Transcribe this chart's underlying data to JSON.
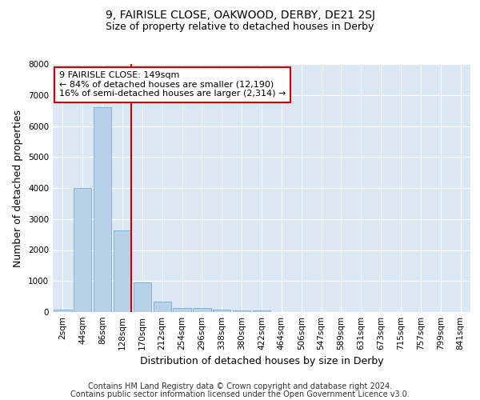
{
  "title": "9, FAIRISLE CLOSE, OAKWOOD, DERBY, DE21 2SJ",
  "subtitle": "Size of property relative to detached houses in Derby",
  "xlabel": "Distribution of detached houses by size in Derby",
  "ylabel": "Number of detached properties",
  "bar_labels": [
    "2sqm",
    "44sqm",
    "86sqm",
    "128sqm",
    "170sqm",
    "212sqm",
    "254sqm",
    "296sqm",
    "338sqm",
    "380sqm",
    "422sqm",
    "464sqm",
    "506sqm",
    "547sqm",
    "589sqm",
    "631sqm",
    "673sqm",
    "715sqm",
    "757sqm",
    "799sqm",
    "841sqm"
  ],
  "bar_values": [
    75,
    4000,
    6600,
    2625,
    950,
    325,
    130,
    120,
    75,
    60,
    55,
    0,
    0,
    0,
    0,
    0,
    0,
    0,
    0,
    0,
    0
  ],
  "bar_color": "#b8d0e8",
  "bar_edge_color": "#7aadd4",
  "vline_x_idx": 3,
  "vline_color": "#cc0000",
  "annotation_box_text": "9 FAIRISLE CLOSE: 149sqm\n← 84% of detached houses are smaller (12,190)\n16% of semi-detached houses are larger (2,314) →",
  "annotation_box_facecolor": "white",
  "annotation_box_edgecolor": "#cc0000",
  "ylim": [
    0,
    8000
  ],
  "yticks": [
    0,
    1000,
    2000,
    3000,
    4000,
    5000,
    6000,
    7000,
    8000
  ],
  "footer_line1": "Contains HM Land Registry data © Crown copyright and database right 2024.",
  "footer_line2": "Contains public sector information licensed under the Open Government Licence v3.0.",
  "plot_bg_color": "#dce9f5",
  "fig_bg_color": "#ffffff",
  "title_fontsize": 10,
  "subtitle_fontsize": 9,
  "axis_label_fontsize": 9,
  "tick_fontsize": 7.5,
  "footer_fontsize": 7,
  "annotation_fontsize": 8
}
